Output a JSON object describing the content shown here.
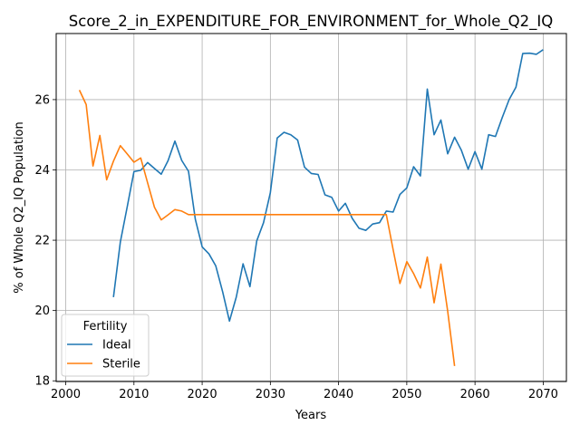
{
  "chart_data": {
    "type": "line",
    "title": "Score_2_in_EXPENDITURE_FOR_ENVIRONMENT_for_Whole_Q2_IQ",
    "xlabel": "Years",
    "ylabel": "% of Whole Q2_IQ Population",
    "xlim": [
      1998.6,
      2073.4
    ],
    "ylim": [
      17.98,
      27.88
    ],
    "xticks": [
      2000,
      2010,
      2020,
      2030,
      2040,
      2050,
      2060,
      2070
    ],
    "yticks": [
      18,
      20,
      22,
      24,
      26
    ],
    "grid": true,
    "legend": {
      "title": "Fertility",
      "placement": "lower-left"
    },
    "series": [
      {
        "name": "Ideal",
        "color": "#1f77b4",
        "x": [
          2007,
          2008,
          2009,
          2010,
          2011,
          2012,
          2013,
          2014,
          2015,
          2016,
          2017,
          2018,
          2019,
          2020,
          2021,
          2022,
          2023,
          2024,
          2025,
          2026,
          2027,
          2028,
          2029,
          2030,
          2031,
          2032,
          2033,
          2034,
          2035,
          2036,
          2037,
          2038,
          2039,
          2040,
          2041,
          2042,
          2043,
          2044,
          2045,
          2046,
          2047,
          2048,
          2049,
          2050,
          2051,
          2052,
          2053,
          2054,
          2055,
          2056,
          2057,
          2058,
          2059,
          2060,
          2061,
          2062,
          2063,
          2064,
          2065,
          2066,
          2067,
          2068,
          2069,
          2070
        ],
        "y": [
          20.38,
          21.95,
          22.94,
          23.95,
          23.99,
          24.21,
          24.04,
          23.88,
          24.26,
          24.82,
          24.27,
          23.96,
          22.6,
          21.81,
          21.61,
          21.27,
          20.53,
          19.7,
          20.38,
          21.33,
          20.68,
          21.98,
          22.5,
          23.35,
          24.91,
          25.07,
          25.0,
          24.85,
          24.08,
          23.9,
          23.87,
          23.29,
          23.22,
          22.83,
          23.05,
          22.62,
          22.34,
          22.28,
          22.46,
          22.5,
          22.83,
          22.8,
          23.3,
          23.49,
          24.09,
          23.83,
          26.3,
          25.0,
          25.42,
          24.46,
          24.93,
          24.56,
          24.02,
          24.52,
          24.02,
          25.0,
          24.95,
          25.49,
          26.0,
          26.35,
          27.31,
          27.32,
          27.29,
          27.42
        ]
      },
      {
        "name": "Sterile",
        "color": "#ff7f0e",
        "x": [
          2002,
          2003,
          2004,
          2005,
          2006,
          2007,
          2008,
          2009,
          2010,
          2011,
          2012,
          2013,
          2014,
          2015,
          2016,
          2017,
          2018,
          2019,
          2020,
          2021,
          2022,
          2023,
          2024,
          2025,
          2026,
          2027,
          2028,
          2029,
          2030,
          2031,
          2032,
          2033,
          2034,
          2035,
          2036,
          2037,
          2038,
          2039,
          2040,
          2041,
          2042,
          2043,
          2044,
          2045,
          2046,
          2047,
          2048,
          2049,
          2050,
          2051,
          2052,
          2053,
          2054,
          2055,
          2056,
          2057
        ],
        "y": [
          26.27,
          25.86,
          24.11,
          24.98,
          23.72,
          24.25,
          24.69,
          24.46,
          24.22,
          24.34,
          23.63,
          22.94,
          22.58,
          22.72,
          22.87,
          22.83,
          22.73,
          22.73,
          22.73,
          22.73,
          22.73,
          22.73,
          22.73,
          22.73,
          22.73,
          22.73,
          22.73,
          22.73,
          22.73,
          22.73,
          22.73,
          22.73,
          22.73,
          22.73,
          22.73,
          22.73,
          22.73,
          22.73,
          22.73,
          22.73,
          22.73,
          22.73,
          22.73,
          22.73,
          22.73,
          22.73,
          21.73,
          20.77,
          21.39,
          21.05,
          20.64,
          21.52,
          20.22,
          21.32,
          19.98,
          18.42
        ]
      }
    ]
  }
}
